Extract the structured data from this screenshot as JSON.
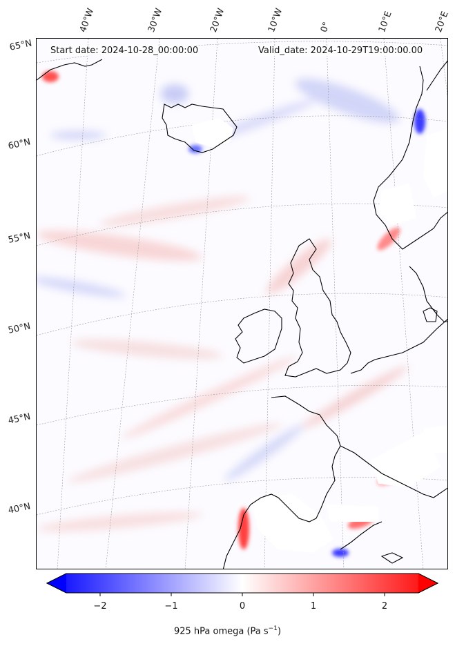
{
  "map": {
    "start_date_text": "Start date: 2024-10-28_00:00:00",
    "valid_date_text": "Valid_date: 2024-10-29T19:00:00.00",
    "longitude_labels": [
      "40°W",
      "30°W",
      "20°W",
      "10°W",
      "0°",
      "10°E",
      "20°E"
    ],
    "latitude_labels": [
      "65°N",
      "60°N",
      "55°N",
      "50°N",
      "45°N",
      "40°N"
    ],
    "coastline_color": "#000000"
  },
  "colorbar": {
    "label_main": "925 hPa omega (Pa s",
    "label_sup": "−1",
    "label_tail": ")",
    "ticks": [
      "−2",
      "−1",
      "0",
      "1",
      "2"
    ],
    "range": [
      -2.6,
      2.6
    ],
    "colormap": "bwr",
    "low_color": "#0000ff",
    "mid_color": "#ffffff",
    "high_color": "#ff0000",
    "extend": "both"
  }
}
